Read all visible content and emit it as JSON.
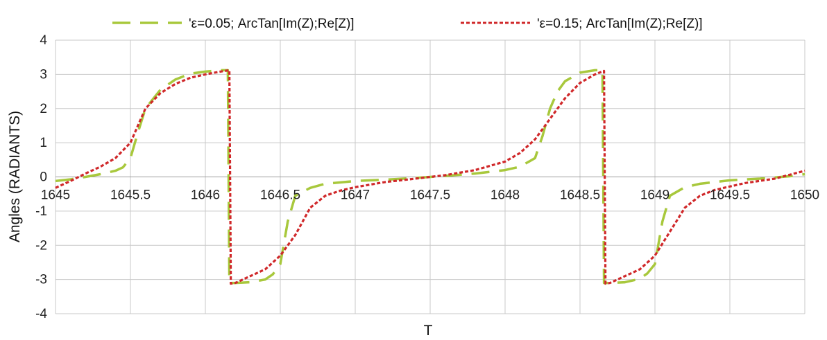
{
  "chart_data": {
    "type": "line",
    "title": "",
    "xlabel": "T",
    "ylabel": "Angles (RADIANTS)",
    "xlim": [
      1645,
      1650
    ],
    "ylim": [
      -4,
      4
    ],
    "xticks": [
      1645,
      1645.5,
      1646,
      1646.5,
      1647,
      1647.5,
      1648,
      1648.5,
      1649,
      1649.5,
      1650
    ],
    "xtick_labels": [
      "1645",
      "1645.5",
      "1646",
      "1646.5",
      "1647",
      "1647.5",
      "1648",
      "1648.5",
      "1649",
      "1649.5",
      "1650"
    ],
    "yticks": [
      -4,
      -3,
      -2,
      -1,
      0,
      1,
      2,
      3,
      4
    ],
    "ytick_labels": [
      "-4",
      "-3",
      "-2",
      "-1",
      "0",
      "1",
      "2",
      "3",
      "4"
    ],
    "grid": true,
    "legend_position": "top",
    "series": [
      {
        "name": "'ε=0.05;  ArcTan[Im(Z);Re[Z)]",
        "color": "#a8c83c",
        "style": "long-dash",
        "x": [
          1645.0,
          1645.1,
          1645.2,
          1645.3,
          1645.4,
          1645.45,
          1645.5,
          1645.55,
          1645.6,
          1645.7,
          1645.8,
          1645.9,
          1646.0,
          1646.1,
          1646.15,
          1646.16,
          1646.2,
          1646.3,
          1646.4,
          1646.45,
          1646.5,
          1646.55,
          1646.6,
          1646.7,
          1646.8,
          1647.0,
          1647.2,
          1647.4,
          1647.5,
          1647.6,
          1647.8,
          1648.0,
          1648.1,
          1648.2,
          1648.25,
          1648.3,
          1648.35,
          1648.4,
          1648.5,
          1648.6,
          1648.65,
          1648.66,
          1648.7,
          1648.8,
          1648.9,
          1648.95,
          1649.0,
          1649.05,
          1649.1,
          1649.2,
          1649.3,
          1649.5,
          1649.7,
          1649.9,
          1650.0
        ],
        "y": [
          -0.12,
          -0.07,
          0.0,
          0.08,
          0.18,
          0.28,
          0.55,
          1.3,
          2.0,
          2.55,
          2.85,
          3.02,
          3.08,
          3.12,
          3.12,
          -3.1,
          -3.1,
          -3.08,
          -3.0,
          -2.85,
          -2.55,
          -1.3,
          -0.55,
          -0.32,
          -0.2,
          -0.12,
          -0.08,
          -0.03,
          0.0,
          0.03,
          0.1,
          0.2,
          0.3,
          0.55,
          1.2,
          2.0,
          2.5,
          2.8,
          3.05,
          3.12,
          3.12,
          -3.1,
          -3.1,
          -3.08,
          -2.98,
          -2.82,
          -2.55,
          -1.3,
          -0.55,
          -0.3,
          -0.2,
          -0.1,
          -0.05,
          0.02,
          0.08
        ]
      },
      {
        "name": "'ε=0.15;  ArcTan[Im(Z);Re[Z)]",
        "color": "#d0282a",
        "style": "short-dash",
        "x": [
          1645.0,
          1645.1,
          1645.2,
          1645.3,
          1645.4,
          1645.5,
          1645.55,
          1645.6,
          1645.7,
          1645.8,
          1645.9,
          1646.0,
          1646.1,
          1646.16,
          1646.17,
          1646.2,
          1646.3,
          1646.4,
          1646.5,
          1646.6,
          1646.7,
          1646.8,
          1646.9,
          1647.0,
          1647.2,
          1647.4,
          1647.5,
          1647.6,
          1647.8,
          1648.0,
          1648.1,
          1648.2,
          1648.3,
          1648.4,
          1648.5,
          1648.6,
          1648.66,
          1648.67,
          1648.7,
          1648.8,
          1648.9,
          1649.0,
          1649.1,
          1649.2,
          1649.3,
          1649.4,
          1649.5,
          1649.6,
          1649.8,
          1650.0
        ],
        "y": [
          -0.32,
          -0.12,
          0.1,
          0.3,
          0.55,
          1.0,
          1.5,
          2.0,
          2.45,
          2.72,
          2.9,
          3.0,
          3.08,
          3.12,
          -3.12,
          -3.1,
          -2.9,
          -2.7,
          -2.3,
          -1.7,
          -0.9,
          -0.55,
          -0.4,
          -0.3,
          -0.15,
          -0.05,
          0.0,
          0.05,
          0.2,
          0.45,
          0.7,
          1.1,
          1.7,
          2.3,
          2.75,
          3.0,
          3.1,
          -3.12,
          -3.1,
          -2.9,
          -2.7,
          -2.3,
          -1.6,
          -0.9,
          -0.55,
          -0.38,
          -0.28,
          -0.18,
          -0.05,
          0.18
        ]
      }
    ]
  }
}
